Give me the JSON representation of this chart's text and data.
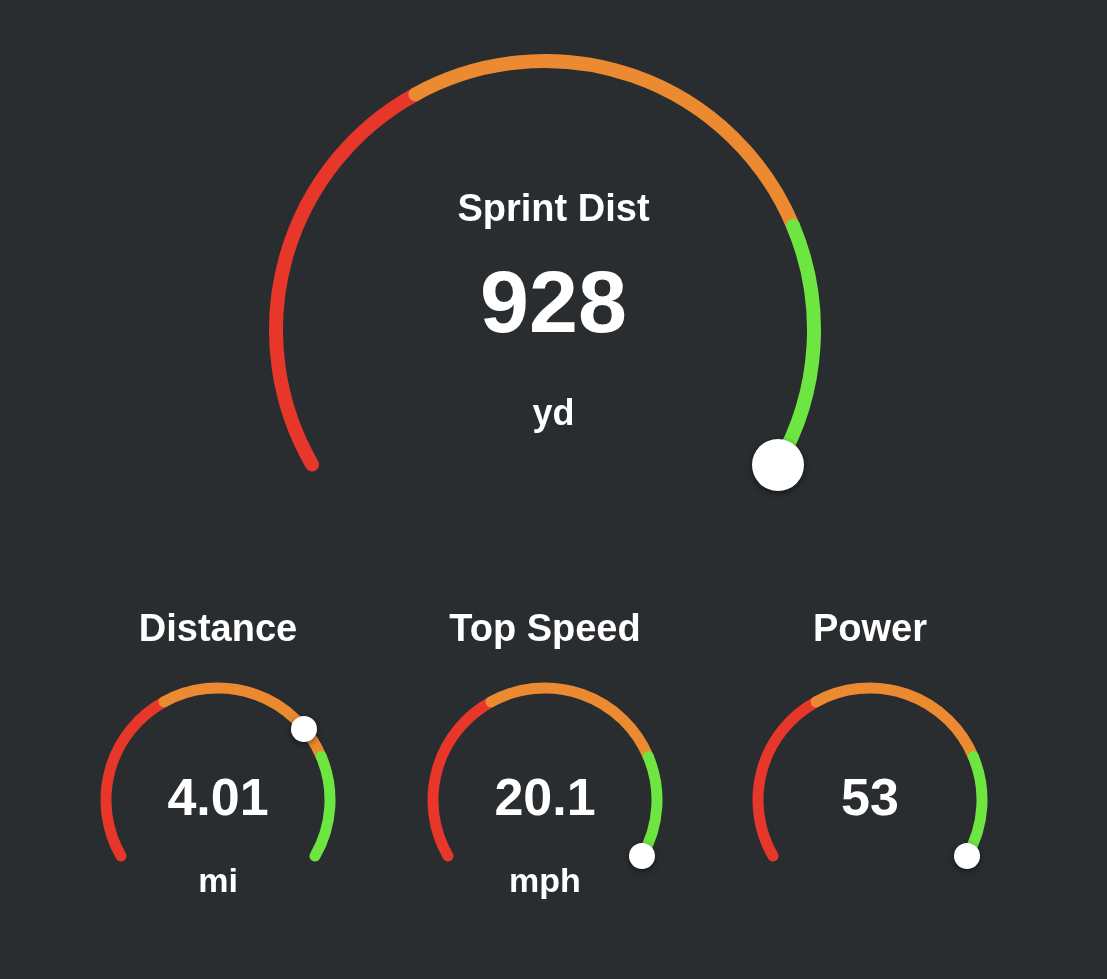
{
  "chart_data": [
    {
      "type": "other",
      "title": "Sprint Dist",
      "values": [
        928
      ],
      "data_labels": true,
      "annotations": [
        "yd"
      ]
    },
    {
      "type": "other",
      "title": "Distance",
      "values": [
        4.01
      ],
      "data_labels": true,
      "annotations": [
        "mi"
      ]
    },
    {
      "type": "other",
      "title": "Top Speed",
      "values": [
        20.1
      ],
      "data_labels": true,
      "annotations": [
        "mph"
      ]
    },
    {
      "type": "other",
      "title": "Power",
      "values": [
        53
      ],
      "data_labels": true
    }
  ]
}
